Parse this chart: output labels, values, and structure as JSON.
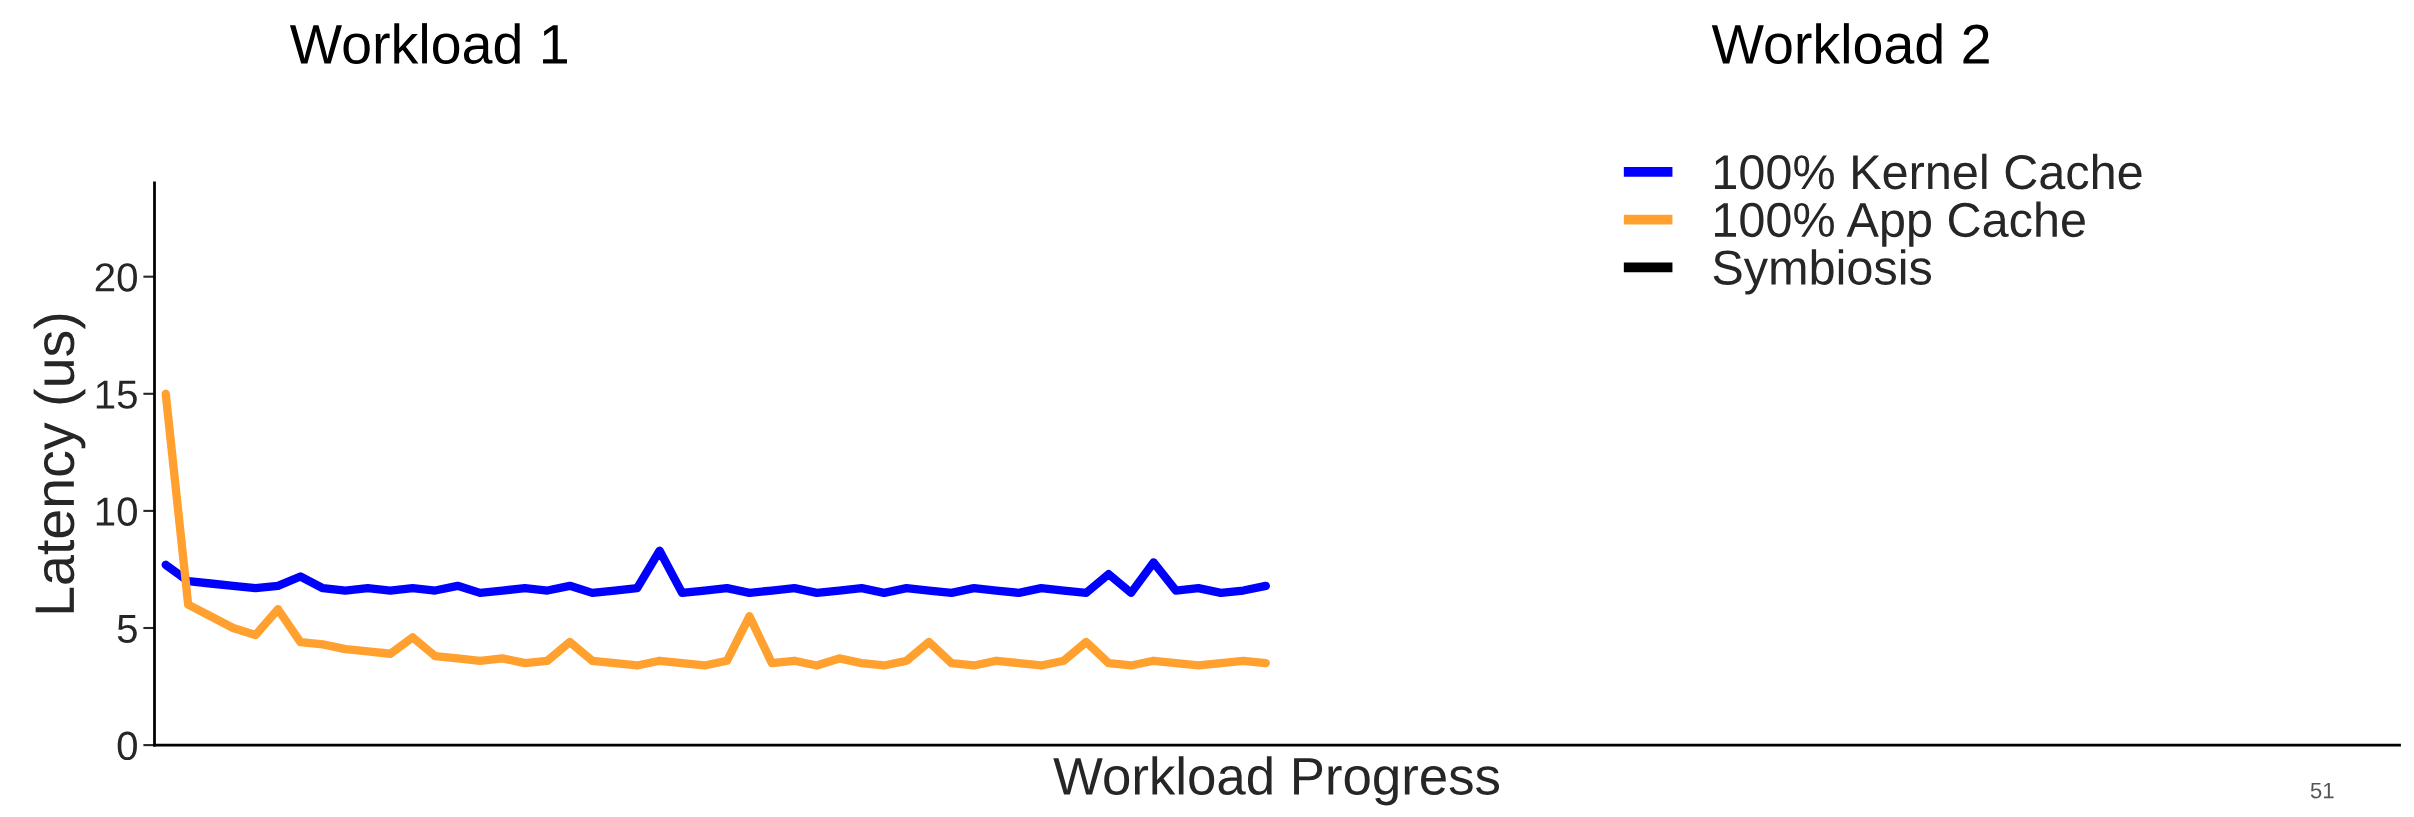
{
  "chart_data": {
    "type": "line",
    "annotations": [
      "Workload 1",
      "Workload 2",
      "51"
    ],
    "xlabel": "Workload Progress",
    "ylabel": "Latency (us)",
    "categories": [
      null,
      null,
      null,
      null,
      null,
      null,
      null,
      null,
      null,
      null,
      null,
      null,
      null,
      null,
      null,
      null,
      null,
      null,
      null,
      null,
      null,
      null,
      null,
      null,
      null,
      null,
      null,
      null,
      null,
      null,
      null,
      null,
      null,
      null,
      null,
      null,
      null,
      null,
      null,
      null,
      null,
      null,
      null,
      null,
      null,
      null,
      null,
      null,
      null,
      null,
      null,
      null,
      null,
      null,
      null,
      null,
      null,
      null,
      null,
      null,
      null,
      null,
      null,
      null,
      null,
      null,
      null,
      null,
      null,
      null,
      null,
      null,
      null,
      null,
      null,
      null,
      null,
      null,
      null,
      null,
      null,
      null,
      null,
      null,
      null,
      null,
      null,
      null,
      null,
      null,
      null,
      null,
      null,
      null,
      null,
      null,
      null,
      null,
      null,
      null
    ],
    "series": [
      {
        "name": "100% Kernel Cache",
        "color": "#0000ff",
        "values": [
          7.7,
          7.0,
          6.9,
          6.8,
          6.7,
          6.8,
          7.2,
          6.7,
          6.6,
          6.7,
          6.6,
          6.7,
          6.6,
          6.8,
          6.5,
          6.6,
          6.7,
          6.6,
          6.8,
          6.5,
          6.6,
          6.7,
          8.3,
          6.5,
          6.6,
          6.7,
          6.5,
          6.6,
          6.7,
          6.5,
          6.6,
          6.7,
          6.5,
          6.7,
          6.6,
          6.5,
          6.7,
          6.6,
          6.5,
          6.7,
          6.6,
          6.5,
          7.3,
          6.5,
          7.8,
          6.6,
          6.7,
          6.5,
          6.6,
          6.8,
          null,
          null,
          null,
          null,
          null,
          null,
          null,
          null,
          null,
          null,
          null,
          null,
          null,
          null,
          null,
          null,
          null,
          null,
          null,
          null,
          null,
          null,
          null,
          null,
          null,
          null,
          null,
          null,
          null,
          null,
          null,
          null,
          null,
          null,
          null,
          null,
          null,
          null,
          null,
          null,
          null,
          null,
          null,
          null,
          null,
          null,
          null,
          null,
          null,
          null
        ]
      },
      {
        "name": "100% App Cache",
        "color": "#ffa02f",
        "values": [
          15,
          6.0,
          5.5,
          5.0,
          4.7,
          5.8,
          4.4,
          4.3,
          4.1,
          4.0,
          3.9,
          4.6,
          3.8,
          3.7,
          3.6,
          3.7,
          3.5,
          3.6,
          4.4,
          3.6,
          3.5,
          3.4,
          3.6,
          3.5,
          3.4,
          3.6,
          5.5,
          3.5,
          3.6,
          3.4,
          3.7,
          3.5,
          3.4,
          3.6,
          4.4,
          3.5,
          3.4,
          3.6,
          3.5,
          3.4,
          3.6,
          4.4,
          3.5,
          3.4,
          3.6,
          3.5,
          3.4,
          3.5,
          3.6,
          3.5,
          null,
          null,
          null,
          null,
          null,
          null,
          null,
          null,
          null,
          null,
          null,
          null,
          null,
          null,
          null,
          null,
          null,
          null,
          null,
          null,
          null,
          null,
          null,
          null,
          null,
          null,
          null,
          null,
          null,
          null,
          null,
          null,
          null,
          null,
          null,
          null,
          null,
          null,
          null,
          null,
          null,
          null,
          null,
          null,
          null,
          null,
          null,
          null,
          null,
          null
        ]
      },
      {
        "name": "Symbiosis",
        "color": "#000000",
        "values": [
          null,
          null,
          null,
          null,
          null,
          null,
          null,
          null,
          null,
          null,
          null,
          null,
          null,
          null,
          null,
          null,
          null,
          null,
          null,
          null,
          null,
          null,
          null,
          null,
          null,
          null,
          null,
          null,
          null,
          null,
          null,
          null,
          null,
          null,
          null,
          null,
          null,
          null,
          null,
          null,
          null,
          null,
          null,
          null,
          null,
          null,
          null,
          null,
          null,
          null,
          null,
          null,
          null,
          null,
          null,
          null,
          null,
          null,
          null,
          null,
          null,
          null,
          null,
          null,
          null,
          null,
          null,
          null,
          null,
          null,
          null,
          null,
          null,
          null,
          null,
          null,
          null,
          null,
          null,
          null,
          null,
          null,
          null,
          null,
          null,
          null,
          null,
          null,
          null,
          null,
          null,
          null,
          null,
          null,
          null,
          null,
          null,
          null,
          null,
          null
        ]
      }
    ],
    "ylim": [
      0,
      24
    ],
    "yticks": [
      0,
      5,
      10,
      15,
      20
    ],
    "tick_labels": "y",
    "grid": false,
    "legend": "top right",
    "line_style": "solid",
    "marker": "none"
  }
}
